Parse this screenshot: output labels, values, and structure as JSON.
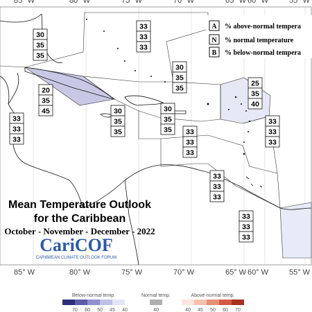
{
  "longitudes": [
    "85° W",
    "80° W",
    "75° W",
    "70° W",
    "65° W",
    "60° W",
    "55° W"
  ],
  "key": [
    {
      "letter": "A",
      "text": "% above-normal tempera"
    },
    {
      "letter": "N",
      "text": "% normal temperature"
    },
    {
      "letter": "B",
      "text": "% below-normal tempera"
    }
  ],
  "regions": [
    [
      30,
      35,
      35
    ],
    [
      33,
      33,
      33
    ],
    [
      20,
      35,
      45
    ],
    [
      33,
      33,
      33
    ],
    [
      30,
      35,
      35
    ],
    [
      30,
      35,
      35
    ],
    [
      30,
      35,
      35
    ],
    [
      25,
      35,
      40
    ],
    [
      33,
      33,
      33
    ],
    [
      33,
      33,
      33
    ],
    [
      33,
      33,
      33
    ],
    [
      33,
      33,
      33
    ]
  ],
  "title": [
    "Mean Temperature Outlook",
    "for the Caribbean"
  ],
  "subtitle": "October - November - December - 2022",
  "logo": {
    "name": "CariCOF",
    "caption": "CARIBBEAN CLIMATE OUTLOOK FORUM"
  },
  "colorbar": {
    "below_title": "Below-normal temp.",
    "below_ticks": [
      70,
      60,
      50,
      45,
      40
    ],
    "normal_title": "Normal temp.",
    "normal_ticks": [
      40
    ],
    "above_title": "Above-normal temp.",
    "above_ticks": [
      40,
      45,
      50,
      60,
      70
    ]
  }
}
